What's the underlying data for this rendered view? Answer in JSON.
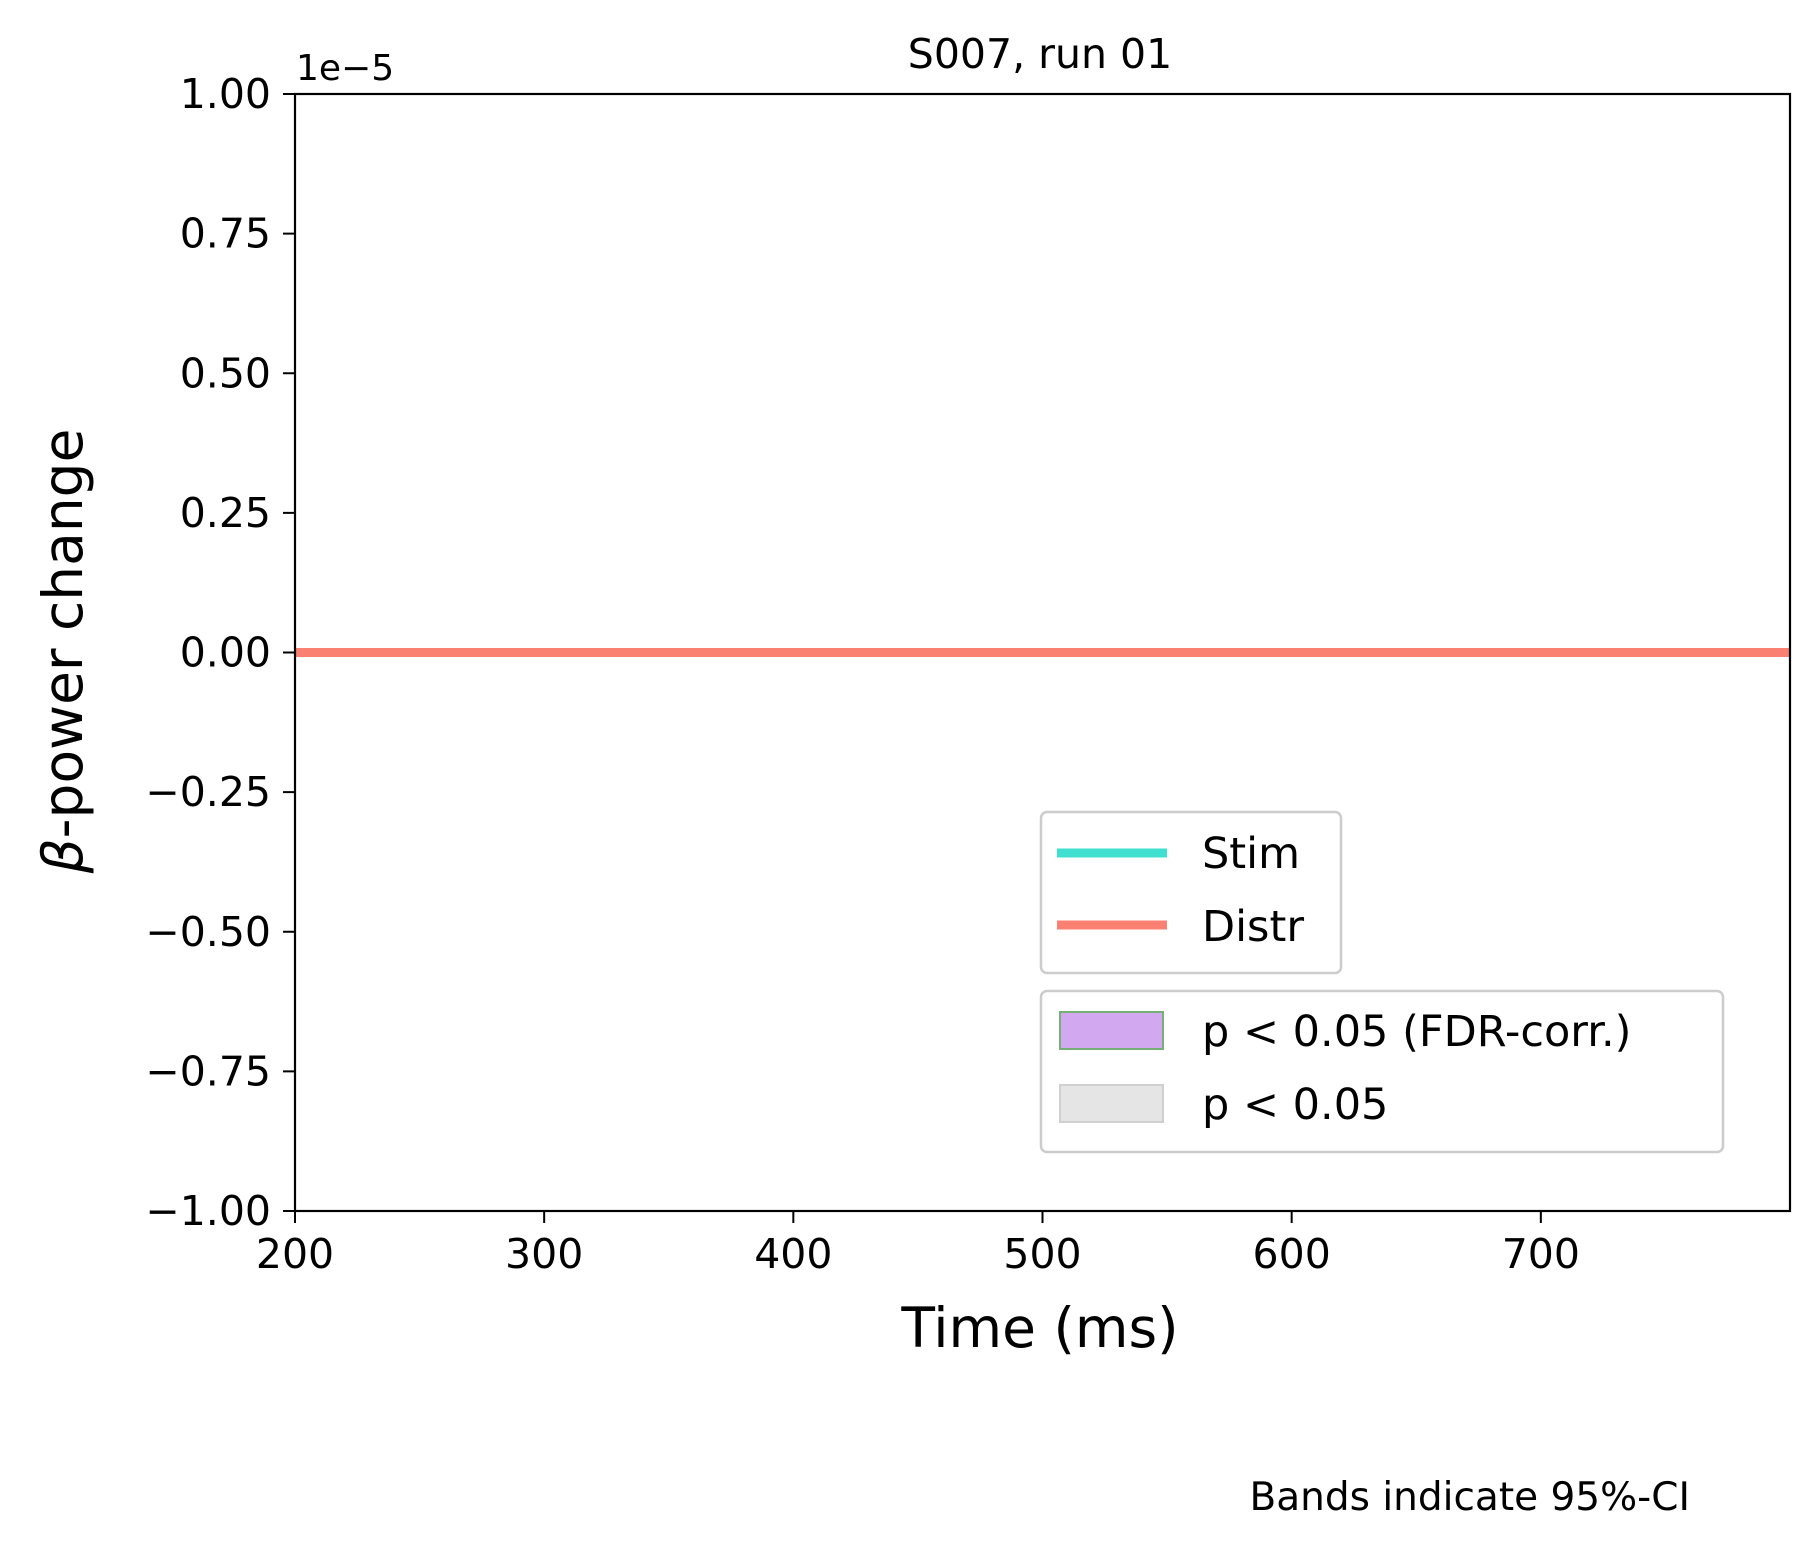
{
  "chart_data": {
    "type": "line",
    "title": "S007, run 01",
    "xlabel": "Time (ms)",
    "ylabel_prefix": "β",
    "ylabel": "-power change",
    "y_offset_label": "1e−5",
    "xlim": [
      200,
      800
    ],
    "ylim": [
      -1.0,
      1.0
    ],
    "y_scale_factor": 1e-05,
    "x_ticks": [
      200,
      300,
      400,
      500,
      600,
      700
    ],
    "x_tick_labels": [
      "200",
      "300",
      "400",
      "500",
      "600",
      "700"
    ],
    "y_ticks": [
      1.0,
      0.75,
      0.5,
      0.25,
      0.0,
      -0.25,
      -0.5,
      -0.75,
      -1.0
    ],
    "y_tick_labels": [
      "1.00",
      "0.75",
      "0.50",
      "0.25",
      "0.00",
      "−0.25",
      "−0.50",
      "−0.75",
      "−1.00"
    ],
    "grid": false,
    "x": [
      200,
      800
    ],
    "series": [
      {
        "name": "Stim",
        "color": "#40E0D0",
        "values": [
          0,
          0
        ]
      },
      {
        "name": "Distr",
        "color": "#FA8072",
        "values": [
          0,
          0
        ]
      }
    ],
    "legend_lines": {
      "placement": "lower-right",
      "entries": [
        {
          "label": "Stim",
          "color": "#40E0D0"
        },
        {
          "label": "Distr",
          "color": "#FA8072"
        }
      ]
    },
    "legend_patches": {
      "placement": "lower-right",
      "entries": [
        {
          "label": "p < 0.05 (FDR-corr.)",
          "fill": "#D2A8F0",
          "edge": "#77B077"
        },
        {
          "label": "p < 0.05",
          "fill": "#E5E5E5",
          "edge": "#D0D0D0"
        }
      ]
    },
    "annotation": "Bands indicate 95%-CI"
  }
}
